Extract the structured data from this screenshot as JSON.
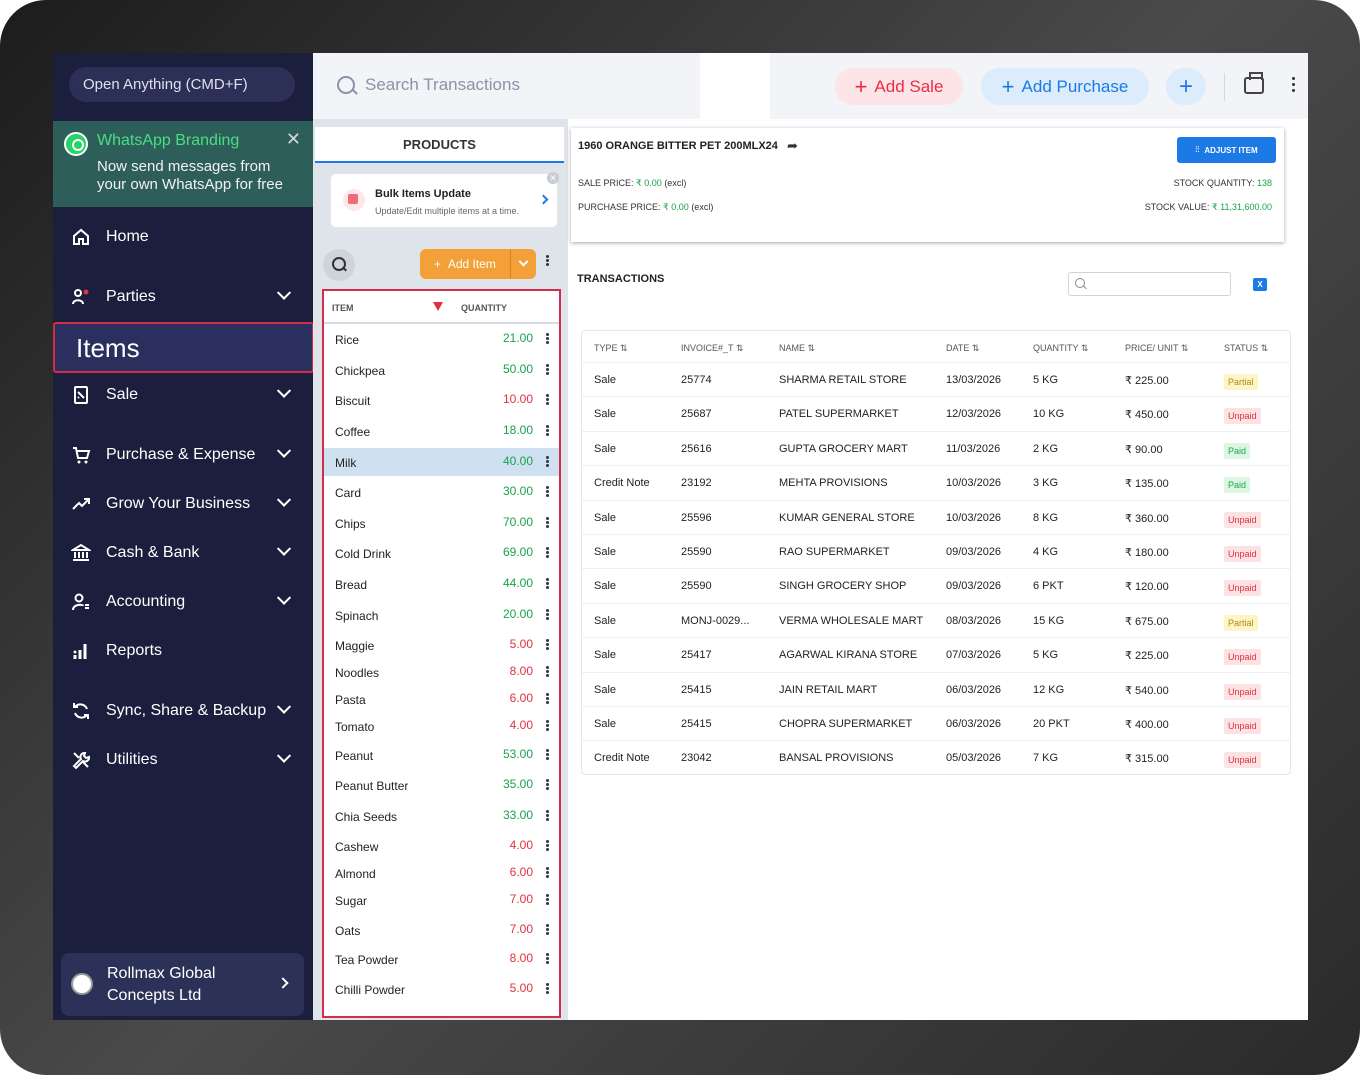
{
  "sidebar": {
    "open_anything": "Open Anything (CMD+F)",
    "whatsapp": {
      "title": "WhatsApp Branding",
      "text": "Now send messages from your own WhatsApp for free",
      "close": "✕"
    },
    "nav": [
      {
        "label": "Home",
        "icon": "home-icon",
        "chevron": false
      },
      {
        "label": "Parties",
        "icon": "parties-icon",
        "chevron": true
      },
      {
        "label": "Sale",
        "icon": "sale-icon",
        "chevron": true
      },
      {
        "label": "Purchase & Expense",
        "icon": "cart-icon",
        "chevron": true
      },
      {
        "label": "Grow Your Business",
        "icon": "trend-icon",
        "chevron": true
      },
      {
        "label": "Cash & Bank",
        "icon": "bank-icon",
        "chevron": true
      },
      {
        "label": "Accounting",
        "icon": "accounting-icon",
        "chevron": true
      },
      {
        "label": "Reports",
        "icon": "reports-icon",
        "chevron": false
      },
      {
        "label": "Sync, Share & Backup",
        "icon": "sync-icon",
        "chevron": true
      },
      {
        "label": "Utilities",
        "icon": "tools-icon",
        "chevron": true
      }
    ],
    "active_item": "Items",
    "company": "Rollmax Global Concepts Ltd"
  },
  "topbar": {
    "search_placeholder": "Search Transactions",
    "add_sale": "Add Sale",
    "add_purchase": "Add Purchase",
    "plus": "+"
  },
  "products": {
    "tab": "PRODUCTS",
    "bulk_title": "Bulk Items Update",
    "bulk_sub": "Update/Edit multiple items at a time.",
    "add_item": "Add Item",
    "col_item": "ITEM",
    "col_qty": "QUANTITY",
    "items": [
      {
        "name": "Rice",
        "qty": "21.00",
        "status": "ok"
      },
      {
        "name": "Chickpea",
        "qty": "50.00",
        "status": "ok"
      },
      {
        "name": "Biscuit",
        "qty": "10.00",
        "status": "low"
      },
      {
        "name": "Coffee",
        "qty": "18.00",
        "status": "ok"
      },
      {
        "name": "Milk",
        "qty": "40.00",
        "status": "ok"
      },
      {
        "name": "Card",
        "qty": "30.00",
        "status": "ok"
      },
      {
        "name": "Chips",
        "qty": "70.00",
        "status": "ok"
      },
      {
        "name": "Cold Drink",
        "qty": "69.00",
        "status": "ok"
      },
      {
        "name": "Bread",
        "qty": "44.00",
        "status": "ok"
      },
      {
        "name": "Spinach",
        "qty": "20.00",
        "status": "ok"
      },
      {
        "name": "Maggie",
        "qty": "5.00",
        "status": "low"
      },
      {
        "name": "Noodles",
        "qty": "8.00",
        "status": "low"
      },
      {
        "name": "Pasta",
        "qty": "6.00",
        "status": "low"
      },
      {
        "name": "Tomato",
        "qty": "4.00",
        "status": "low"
      },
      {
        "name": "Peanut",
        "qty": "53.00",
        "status": "ok"
      },
      {
        "name": "Peanut Butter",
        "qty": "35.00",
        "status": "ok"
      },
      {
        "name": "Chia Seeds",
        "qty": "33.00",
        "status": "ok"
      },
      {
        "name": "Cashew",
        "qty": "4.00",
        "status": "low"
      },
      {
        "name": "Almond",
        "qty": "6.00",
        "status": "low"
      },
      {
        "name": "Sugar",
        "qty": "7.00",
        "status": "low"
      },
      {
        "name": "Oats",
        "qty": "7.00",
        "status": "low"
      },
      {
        "name": "Tea Powder",
        "qty": "8.00",
        "status": "low"
      },
      {
        "name": "Chilli Powder",
        "qty": "5.00",
        "status": "low"
      }
    ],
    "selected": "Milk"
  },
  "detail": {
    "item_name": "1960 ORANGE BITTER PET 200MLX24",
    "adjust": "ADJUST ITEM",
    "sale_price_label": "SALE PRICE:",
    "sale_price": "₹ 0.00",
    "excl": "(excl)",
    "purchase_price_label": "PURCHASE PRICE:",
    "purchase_price": "₹ 0.00",
    "stock_qty_label": "STOCK QUANTITY:",
    "stock_qty": "138",
    "stock_value_label": "STOCK VALUE:",
    "stock_value": "₹ 11,31,600.00",
    "transactions_title": "TRANSACTIONS",
    "columns": [
      "TYPE ⇅",
      "INVOICE#_T ⇅",
      "NAME ⇅",
      "DATE ⇅",
      "QUANTITY ⇅",
      "PRICE/ UNIT ⇅",
      "STATUS ⇅"
    ],
    "rows": [
      {
        "type": "Sale",
        "invoice": "25774",
        "name": "SHARMA RETAIL STORE",
        "date": "13/03/2026",
        "qty": "5 KG",
        "price": "₹ 225.00",
        "status": "Partial"
      },
      {
        "type": "Sale",
        "invoice": "25687",
        "name": "PATEL SUPERMARKET",
        "date": "12/03/2026",
        "qty": "10 KG",
        "price": "₹ 450.00",
        "status": "Unpaid"
      },
      {
        "type": "Sale",
        "invoice": "25616",
        "name": "GUPTA GROCERY MART",
        "date": "11/03/2026",
        "qty": "2 KG",
        "price": "₹ 90.00",
        "status": "Paid"
      },
      {
        "type": "Credit Note",
        "invoice": "23192",
        "name": "MEHTA PROVISIONS",
        "date": "10/03/2026",
        "qty": "3 KG",
        "price": "₹ 135.00",
        "status": "Paid"
      },
      {
        "type": "Sale",
        "invoice": "25596",
        "name": "KUMAR GENERAL STORE",
        "date": "10/03/2026",
        "qty": "8 KG",
        "price": "₹ 360.00",
        "status": "Unpaid"
      },
      {
        "type": "Sale",
        "invoice": "25590",
        "name": "RAO SUPERMARKET",
        "date": "09/03/2026",
        "qty": "4 KG",
        "price": "₹ 180.00",
        "status": "Unpaid"
      },
      {
        "type": "Sale",
        "invoice": "25590",
        "name": "SINGH GROCERY SHOP",
        "date": "09/03/2026",
        "qty": "6 PKT",
        "price": "₹ 120.00",
        "status": "Unpaid"
      },
      {
        "type": "Sale",
        "invoice": "MONJ-0029...",
        "name": "VERMA WHOLESALE MART",
        "date": "08/03/2026",
        "qty": "15 KG",
        "price": "₹ 675.00",
        "status": "Partial"
      },
      {
        "type": "Sale",
        "invoice": "25417",
        "name": "AGARWAL KIRANA STORE",
        "date": "07/03/2026",
        "qty": "5 KG",
        "price": "₹ 225.00",
        "status": "Unpaid"
      },
      {
        "type": "Sale",
        "invoice": "25415",
        "name": "JAIN RETAIL MART",
        "date": "06/03/2026",
        "qty": "12 KG",
        "price": "₹ 540.00",
        "status": "Unpaid"
      },
      {
        "type": "Sale",
        "invoice": "25415",
        "name": "CHOPRA SUPERMARKET",
        "date": "06/03/2026",
        "qty": "20 PKT",
        "price": "₹ 400.00",
        "status": "Unpaid"
      },
      {
        "type": "Credit Note",
        "invoice": "23042",
        "name": "BANSAL PROVISIONS",
        "date": "05/03/2026",
        "qty": "7 KG",
        "price": "₹ 315.00",
        "status": "Unpaid"
      }
    ]
  },
  "colors": {
    "sidebar": "#1b1e3c",
    "accent": "#1b7ae6",
    "sale": "#ee2b47",
    "ok": "#17a34a",
    "low": "#e0323e",
    "highlight": "#d22b4b"
  }
}
